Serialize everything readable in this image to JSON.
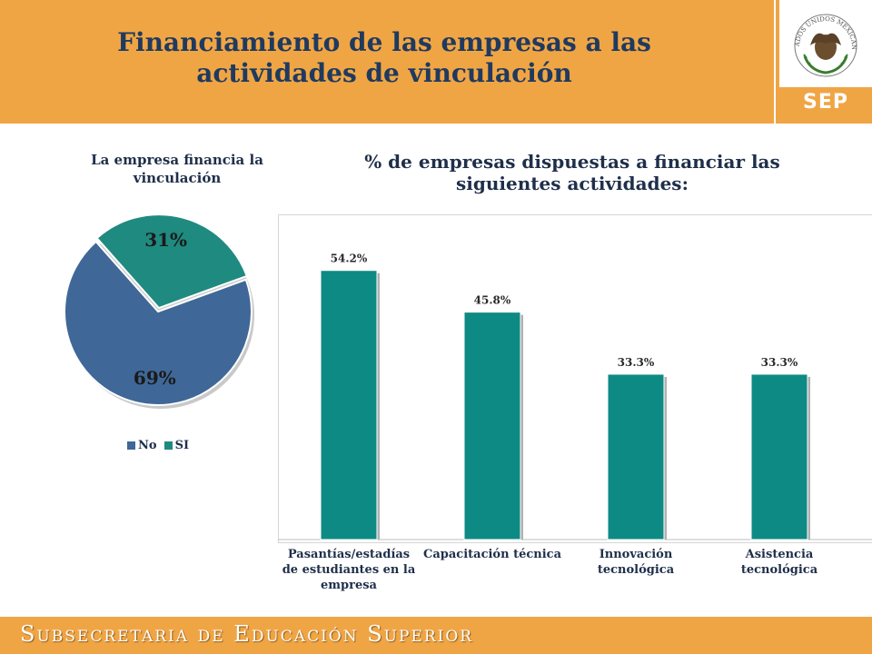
{
  "header": {
    "title_line1": "Financiamiento de las empresas a las",
    "title_line2": "actividades de vinculación",
    "logo_text": "SEP",
    "seal_text": "ESTADOS UNIDOS MEXICANOS"
  },
  "footer": {
    "text": "Subsecretaria de Educación Superior"
  },
  "colors": {
    "accent": "#f0a544",
    "title": "#1f3a5f",
    "pie_no": "#3f6798",
    "pie_si": "#1f8a80",
    "bar": "#0e8a84"
  },
  "chart_data": [
    {
      "type": "pie",
      "title_line1": "La empresa financia la",
      "title_line2": "vinculación",
      "categories": [
        "No",
        "SI"
      ],
      "values": [
        69,
        31
      ],
      "labels": [
        "69%",
        "31%"
      ],
      "legend": "bottom"
    },
    {
      "type": "bar",
      "title_line1": "% de empresas dispuestas a financiar las",
      "title_line2": "siguientes actividades:",
      "categories": [
        [
          "Pasantías/estadías",
          "de estudiantes en la",
          "empresa"
        ],
        [
          "Capacitación técnica"
        ],
        [
          "Innovación",
          "tecnológica"
        ],
        [
          "Asistencia",
          "tecnológica"
        ]
      ],
      "values": [
        54.2,
        45.8,
        33.3,
        33.3
      ],
      "labels": [
        "54.2%",
        "45.8%",
        "33.3%",
        "33.3%"
      ],
      "ylim": [
        0,
        60
      ],
      "grid": false,
      "legend": "none"
    }
  ]
}
